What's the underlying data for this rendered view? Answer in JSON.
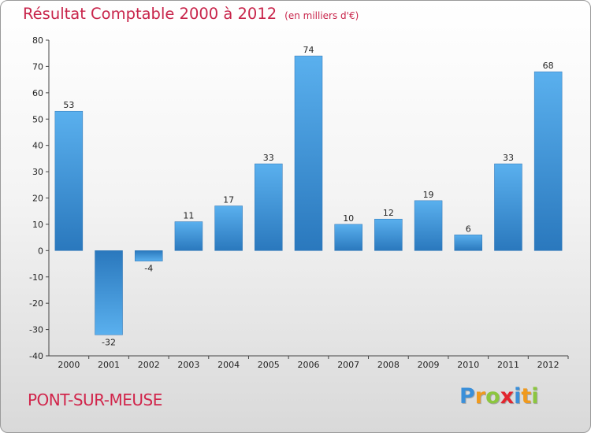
{
  "header": {
    "title": "Résultat Comptable 2000 à 2012",
    "subtitle": "(en milliers d'€)"
  },
  "footer": {
    "town": "PONT-SUR-MEUSE",
    "logo": [
      "P",
      "r",
      "o",
      "x",
      "i",
      "t",
      "i"
    ],
    "logo_colors": [
      "#3a8fd9",
      "#f09a1e",
      "#8cc63f",
      "#e2262f",
      "#3a8fd9",
      "#f09a1e",
      "#8cc63f"
    ]
  },
  "chart_data": {
    "type": "bar",
    "title": "Résultat Comptable 2000 à 2012",
    "subtitle": "(en milliers d'€)",
    "xlabel": "",
    "ylabel": "",
    "categories": [
      "2000",
      "2001",
      "2002",
      "2003",
      "2004",
      "2005",
      "2006",
      "2007",
      "2008",
      "2009",
      "2010",
      "2011",
      "2012"
    ],
    "values": [
      53,
      -32,
      -4,
      11,
      17,
      33,
      74,
      10,
      12,
      19,
      6,
      33,
      68
    ],
    "ylim": [
      -40,
      80
    ],
    "yticks": [
      -40,
      -30,
      -20,
      -10,
      0,
      10,
      20,
      30,
      40,
      50,
      60,
      70,
      80
    ],
    "bar_color": "#4da3e3",
    "grid": false
  }
}
